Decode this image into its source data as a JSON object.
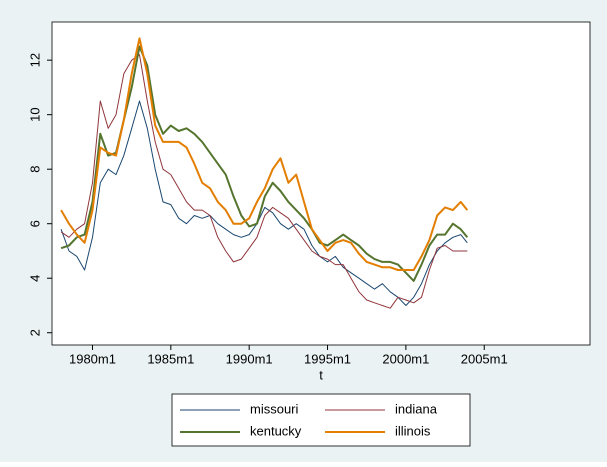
{
  "chart_data": {
    "type": "line",
    "xlabel": "t",
    "x": [
      216,
      222,
      228,
      234,
      240,
      246,
      252,
      258,
      264,
      270,
      276,
      282,
      288,
      294,
      300,
      306,
      312,
      318,
      324,
      330,
      336,
      342,
      348,
      354,
      360,
      366,
      372,
      378,
      384,
      390,
      396,
      402,
      408,
      414,
      420,
      426,
      432,
      438,
      444,
      450,
      456,
      462,
      468,
      474,
      480,
      486,
      492,
      498,
      504,
      510,
      516,
      522,
      527
    ],
    "series": [
      {
        "name": "missouri",
        "color": "#1a476f",
        "values": [
          5.8,
          5.0,
          4.8,
          4.3,
          5.5,
          7.5,
          8.0,
          7.8,
          8.5,
          9.5,
          10.5,
          9.5,
          8.0,
          6.8,
          6.7,
          6.2,
          6.0,
          6.3,
          6.2,
          6.3,
          6.0,
          5.8,
          5.6,
          5.5,
          5.6,
          6.0,
          6.6,
          6.4,
          6.0,
          5.8,
          6.0,
          5.8,
          5.2,
          4.8,
          4.6,
          4.8,
          4.4,
          4.2,
          4.0,
          3.8,
          3.6,
          3.8,
          3.5,
          3.3,
          3.0,
          3.3,
          3.8,
          4.5,
          5.0,
          5.3,
          5.5,
          5.6,
          5.3
        ]
      },
      {
        "name": "indiana",
        "color": "#90353b",
        "values": [
          5.7,
          5.5,
          5.8,
          6.0,
          7.5,
          10.5,
          9.5,
          10.0,
          11.5,
          12.0,
          12.2,
          10.5,
          9.0,
          8.0,
          7.8,
          7.3,
          6.8,
          6.5,
          6.5,
          6.3,
          5.5,
          5.0,
          4.6,
          4.7,
          5.1,
          5.5,
          6.3,
          6.6,
          6.4,
          6.2,
          5.8,
          5.4,
          5.0,
          4.8,
          4.7,
          4.5,
          4.5,
          4.0,
          3.5,
          3.2,
          3.1,
          3.0,
          2.9,
          3.3,
          3.2,
          3.1,
          3.3,
          4.3,
          5.1,
          5.2,
          5.0,
          5.0,
          5.0
        ]
      },
      {
        "name": "kentucky",
        "color": "#55752f",
        "values": [
          5.1,
          5.2,
          5.5,
          5.6,
          6.8,
          9.3,
          8.5,
          8.6,
          9.8,
          11.0,
          12.5,
          11.8,
          10.0,
          9.3,
          9.6,
          9.4,
          9.5,
          9.3,
          9.0,
          8.6,
          8.2,
          7.8,
          7.0,
          6.3,
          5.9,
          6.0,
          7.0,
          7.5,
          7.2,
          6.8,
          6.5,
          6.2,
          5.8,
          5.3,
          5.2,
          5.4,
          5.6,
          5.4,
          5.2,
          4.9,
          4.7,
          4.6,
          4.6,
          4.5,
          4.2,
          3.9,
          4.5,
          5.2,
          5.6,
          5.6,
          6.0,
          5.8,
          5.5
        ]
      },
      {
        "name": "illinois",
        "color": "#e37e00",
        "values": [
          6.5,
          6.0,
          5.6,
          5.3,
          6.5,
          8.8,
          8.6,
          8.5,
          9.8,
          11.5,
          12.8,
          11.5,
          9.6,
          9.0,
          9.0,
          9.0,
          8.8,
          8.2,
          7.5,
          7.3,
          6.8,
          6.5,
          6.0,
          6.0,
          6.2,
          6.8,
          7.3,
          8.0,
          8.4,
          7.5,
          7.8,
          6.8,
          5.8,
          5.4,
          5.0,
          5.3,
          5.4,
          5.3,
          4.9,
          4.6,
          4.5,
          4.4,
          4.4,
          4.3,
          4.3,
          4.3,
          4.8,
          5.4,
          6.3,
          6.6,
          6.5,
          6.8,
          6.5
        ]
      }
    ],
    "xlim": [
      209,
      621
    ],
    "xticks": [
      {
        "value": 240,
        "label": "1980m1"
      },
      {
        "value": 300,
        "label": "1985m1"
      },
      {
        "value": 360,
        "label": "1990m1"
      },
      {
        "value": 420,
        "label": "1995m1"
      },
      {
        "value": 480,
        "label": "2000m1"
      },
      {
        "value": 540,
        "label": "2005m1"
      }
    ],
    "ylim": [
      1.55,
      13.4
    ],
    "yticks": [
      2,
      4,
      6,
      8,
      10,
      12
    ],
    "grid": false,
    "legend": "bottom"
  }
}
